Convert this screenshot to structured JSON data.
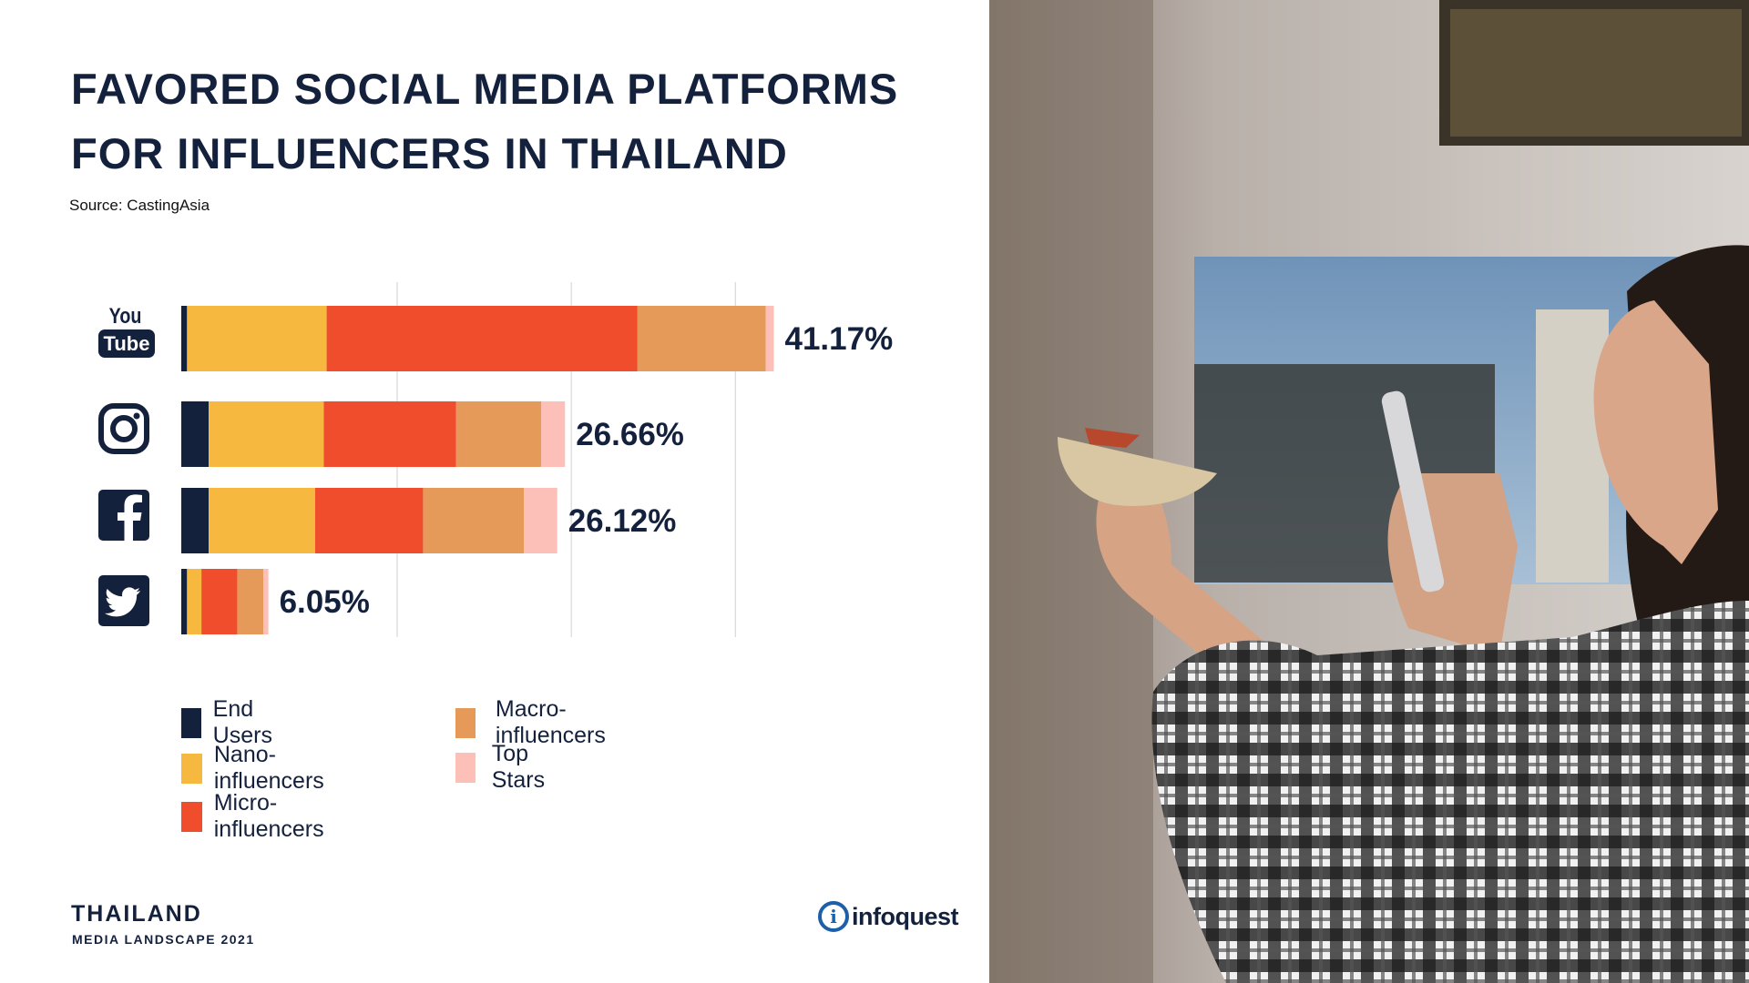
{
  "title_lines": [
    "FAVORED SOCIAL MEDIA PLATFORMS",
    "FOR INFLUENCERS IN THAILAND"
  ],
  "source": "Source: CastingAsia",
  "colors": {
    "navy": "#14213d",
    "end_users": "#14213d",
    "nano": "#f6b83f",
    "micro": "#ef4d2c",
    "macro": "#e69a59",
    "top_stars": "#fcc0b8",
    "gridline": "#d9d9d9"
  },
  "chart_data": {
    "type": "bar",
    "orientation": "horizontal",
    "stacked": true,
    "categories": [
      "YouTube",
      "Instagram",
      "Facebook",
      "Twitter"
    ],
    "category_icons": [
      "youtube-icon",
      "instagram-icon",
      "facebook-icon",
      "twitter-icon"
    ],
    "totals": [
      41.17,
      26.66,
      26.12,
      6.05
    ],
    "total_labels": [
      "41.17%",
      "26.66%",
      "26.12%",
      "6.05%"
    ],
    "series": [
      {
        "name": "End Users",
        "values": [
          0.4,
          1.9,
          1.9,
          0.4
        ]
      },
      {
        "name": "Nano-influencers",
        "values": [
          9.7,
          8.0,
          7.4,
          1.0
        ]
      },
      {
        "name": "Micro-influencers",
        "values": [
          21.6,
          9.2,
          7.5,
          2.5
        ]
      },
      {
        "name": "Macro-influencers",
        "values": [
          8.9,
          5.9,
          7.0,
          1.8
        ]
      },
      {
        "name": "Top Stars",
        "values": [
          0.57,
          1.66,
          2.32,
          0.35
        ]
      }
    ],
    "xlim": [
      0,
      45
    ],
    "grid": true,
    "legend_position": "bottom"
  },
  "footer": {
    "country": "THAILAND",
    "subtitle": "MEDIA LANDSCAPE 2021",
    "brand": "infoquest",
    "brand_mark": "i"
  }
}
